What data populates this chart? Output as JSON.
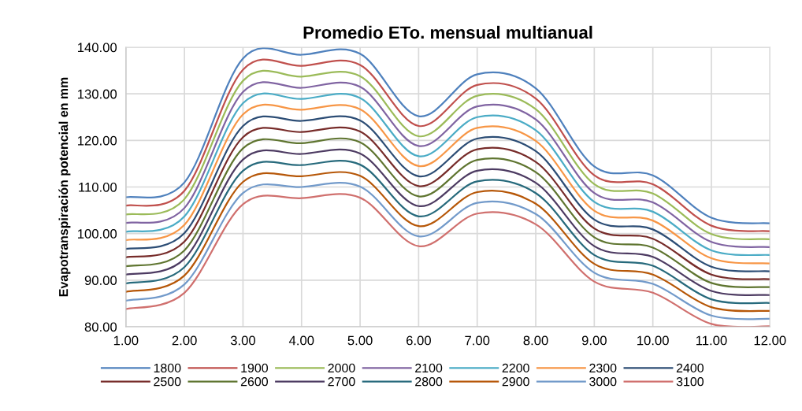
{
  "chart_data": {
    "type": "line",
    "title": "Promedio ETo. mensual multianual",
    "ylabel": "Evapotranspiración potencial en mm",
    "x": [
      1,
      2,
      3,
      4,
      5,
      6,
      7,
      8,
      9,
      10,
      11,
      12
    ],
    "xlim": [
      1,
      12
    ],
    "xticks": [
      {
        "value": 1,
        "label": "1.00"
      },
      {
        "value": 2,
        "label": "2.00"
      },
      {
        "value": 3,
        "label": "3.00"
      },
      {
        "value": 4,
        "label": "4.00"
      },
      {
        "value": 5,
        "label": "5.00"
      },
      {
        "value": 6,
        "label": "6.00"
      },
      {
        "value": 7,
        "label": "7.00"
      },
      {
        "value": 8,
        "label": "8.00"
      },
      {
        "value": 9,
        "label": "9.00"
      },
      {
        "value": 10,
        "label": "10.00"
      },
      {
        "value": 11,
        "label": "11.00"
      },
      {
        "value": 12,
        "label": "12.00"
      }
    ],
    "ylim": [
      80,
      140
    ],
    "yticks": [
      {
        "value": 80,
        "label": "80.00"
      },
      {
        "value": 90,
        "label": "90.00"
      },
      {
        "value": 100,
        "label": "100.00"
      },
      {
        "value": 110,
        "label": "110.00"
      },
      {
        "value": 120,
        "label": "120.00"
      },
      {
        "value": 130,
        "label": "130.00"
      },
      {
        "value": 140,
        "label": "140.00"
      }
    ],
    "grid": true,
    "legend": "bottom",
    "marker": "none",
    "line_style": "solid",
    "series": [
      {
        "name": "1800",
        "color": "#4f81bd",
        "values": [
          107.8,
          111.0,
          137.6,
          138.4,
          138.6,
          125.2,
          134.2,
          131.2,
          114.4,
          112.5,
          103.4,
          102.2
        ]
      },
      {
        "name": "1900",
        "color": "#c0504d",
        "values": [
          106.0,
          109.2,
          135.2,
          136.0,
          136.2,
          123.1,
          131.9,
          129.0,
          112.5,
          110.6,
          101.7,
          100.5
        ]
      },
      {
        "name": "2000",
        "color": "#9bbb59",
        "values": [
          104.1,
          107.4,
          132.8,
          133.7,
          133.8,
          120.9,
          129.6,
          126.7,
          110.6,
          108.6,
          99.9,
          98.8
        ]
      },
      {
        "name": "2100",
        "color": "#8064a2",
        "values": [
          102.3,
          105.5,
          130.4,
          131.3,
          131.5,
          118.8,
          127.3,
          124.5,
          108.7,
          106.7,
          98.2,
          97.1
        ]
      },
      {
        "name": "2200",
        "color": "#4bacc6",
        "values": [
          100.4,
          103.7,
          128.0,
          128.9,
          129.1,
          116.6,
          125.0,
          122.2,
          106.8,
          104.7,
          96.4,
          95.4
        ]
      },
      {
        "name": "2300",
        "color": "#f79646",
        "values": [
          98.6,
          101.9,
          125.6,
          126.6,
          126.7,
          114.5,
          122.7,
          119.9,
          104.9,
          102.8,
          94.7,
          93.6
        ]
      },
      {
        "name": "2400",
        "color": "#2c4d75",
        "values": [
          96.7,
          100.1,
          123.1,
          124.2,
          124.3,
          112.3,
          120.4,
          117.7,
          103.0,
          100.9,
          92.9,
          91.9
        ]
      },
      {
        "name": "2500",
        "color": "#772c2a",
        "values": [
          94.9,
          98.3,
          120.7,
          121.8,
          121.9,
          110.2,
          118.1,
          115.4,
          101.1,
          98.9,
          91.2,
          90.2
        ]
      },
      {
        "name": "2600",
        "color": "#5f7530",
        "values": [
          93.0,
          96.4,
          118.3,
          119.4,
          119.6,
          108.0,
          115.8,
          113.2,
          99.2,
          97.0,
          89.4,
          88.5
        ]
      },
      {
        "name": "2700",
        "color": "#4d3b62",
        "values": [
          91.2,
          94.6,
          115.9,
          117.1,
          117.2,
          105.9,
          113.5,
          110.9,
          97.3,
          95.0,
          87.7,
          86.8
        ]
      },
      {
        "name": "2800",
        "color": "#276a7c",
        "values": [
          89.3,
          92.8,
          113.5,
          114.7,
          114.8,
          103.7,
          111.2,
          108.7,
          95.4,
          93.1,
          85.9,
          85.1
        ]
      },
      {
        "name": "2900",
        "color": "#b65708",
        "values": [
          87.5,
          91.0,
          111.1,
          112.3,
          112.4,
          101.6,
          108.9,
          106.4,
          93.5,
          91.2,
          84.2,
          83.4
        ]
      },
      {
        "name": "3000",
        "color": "#729aca",
        "values": [
          85.6,
          89.1,
          108.7,
          110.0,
          110.1,
          99.4,
          106.6,
          104.2,
          91.6,
          89.2,
          82.4,
          81.7
        ]
      },
      {
        "name": "3100",
        "color": "#d0706e",
        "values": [
          83.8,
          87.3,
          106.3,
          107.6,
          107.7,
          97.3,
          104.3,
          102.0,
          89.7,
          87.3,
          80.6,
          80.1
        ]
      }
    ]
  }
}
